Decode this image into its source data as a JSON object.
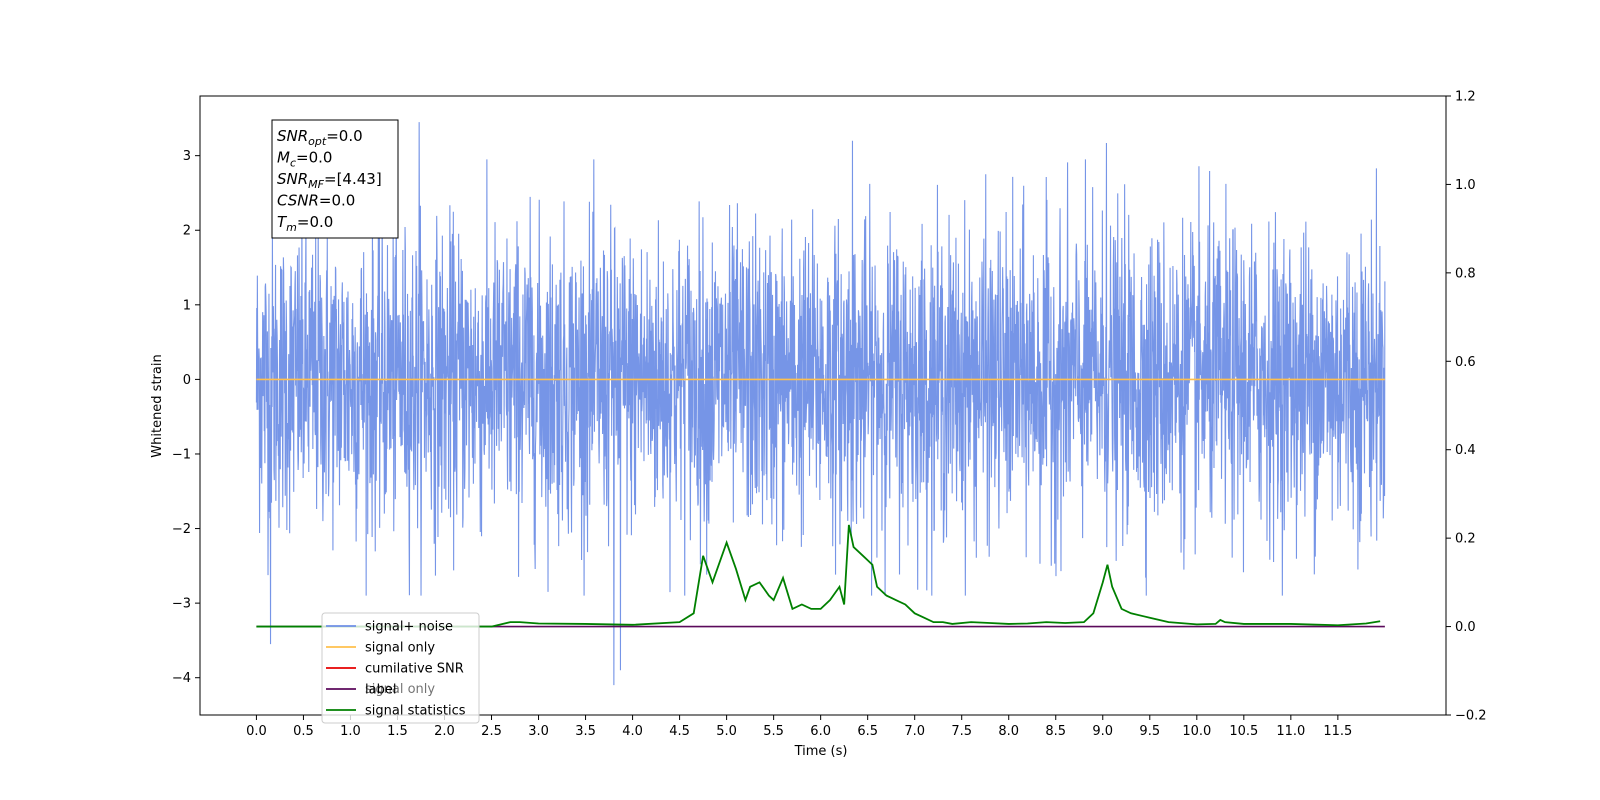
{
  "chart_data": {
    "type": "line",
    "xlabel": "Time (s)",
    "ylabel": "Whitened strain",
    "xlim": [
      -0.6,
      12.65
    ],
    "ylim": [
      -4.5,
      3.8
    ],
    "ylim_right": [
      -0.2,
      1.2
    ],
    "grid": false,
    "legend_position": "lower-left",
    "x_ticks": [
      "0.0",
      "0.5",
      "1.0",
      "1.5",
      "2.0",
      "2.5",
      "3.0",
      "3.5",
      "4.0",
      "4.5",
      "5.0",
      "5.5",
      "6.0",
      "6.5",
      "7.0",
      "7.5",
      "8.0",
      "8.5",
      "9.0",
      "9.5",
      "10.0",
      "10.5",
      "11.0",
      "11.5"
    ],
    "y_ticks": [
      "3",
      "2",
      "1",
      "0",
      "−1",
      "−2",
      "−3",
      "−4"
    ],
    "y_ticks_right": [
      "1.2",
      "1.0",
      "0.8",
      "0.6",
      "0.4",
      "0.2",
      "0.0",
      "−0.2"
    ],
    "colors": {
      "signal_noise": "#6f8fe6",
      "signal_only": "#ffc04d",
      "cumilative_snr": "#e60000",
      "label": "#5b0a5b",
      "signal_statistics": "#008000"
    },
    "series": [
      {
        "name": "signal+ noise",
        "axis": "left",
        "x_range": [
          0.0,
          12.0
        ],
        "envelope_peaks": [
          {
            "x": 0.15,
            "y": -3.55
          },
          {
            "x": 1.73,
            "y": 3.45
          },
          {
            "x": 3.8,
            "y": -4.1
          },
          {
            "x": 3.87,
            "y": -3.9
          },
          {
            "x": 6.34,
            "y": 3.2
          },
          {
            "x": 9.04,
            "y": 3.17
          }
        ]
      },
      {
        "name": "signal only",
        "axis": "left",
        "x": [
          0.0,
          12.0
        ],
        "y": [
          0.0,
          0.0
        ]
      },
      {
        "name": "label",
        "axis": "right",
        "x": [
          0.0,
          12.0
        ],
        "y": [
          0.0,
          0.0
        ]
      },
      {
        "name": "signal statistics",
        "axis": "right",
        "x": [
          0.0,
          0.5,
          1.0,
          1.5,
          2.0,
          2.5,
          2.7,
          2.8,
          3.0,
          3.5,
          4.0,
          4.5,
          4.65,
          4.75,
          4.85,
          5.0,
          5.1,
          5.2,
          5.25,
          5.35,
          5.45,
          5.5,
          5.6,
          5.7,
          5.8,
          5.9,
          6.0,
          6.1,
          6.2,
          6.25,
          6.3,
          6.35,
          6.45,
          6.5,
          6.55,
          6.6,
          6.7,
          6.8,
          6.9,
          7.0,
          7.1,
          7.2,
          7.3,
          7.4,
          7.6,
          7.8,
          8.0,
          8.2,
          8.4,
          8.6,
          8.8,
          8.9,
          9.0,
          9.05,
          9.1,
          9.2,
          9.3,
          9.5,
          9.7,
          10.0,
          10.2,
          10.25,
          10.3,
          10.5,
          11.0,
          11.5,
          11.8,
          11.95
        ],
        "y": [
          0.0,
          0.0,
          0.0,
          0.0,
          0.0,
          0.0,
          0.01,
          0.01,
          0.007,
          0.006,
          0.004,
          0.01,
          0.03,
          0.16,
          0.1,
          0.19,
          0.13,
          0.06,
          0.09,
          0.1,
          0.07,
          0.06,
          0.11,
          0.04,
          0.05,
          0.04,
          0.04,
          0.06,
          0.09,
          0.05,
          0.23,
          0.18,
          0.16,
          0.15,
          0.14,
          0.09,
          0.07,
          0.06,
          0.05,
          0.03,
          0.02,
          0.01,
          0.01,
          0.006,
          0.01,
          0.008,
          0.006,
          0.007,
          0.01,
          0.008,
          0.01,
          0.03,
          0.1,
          0.14,
          0.09,
          0.04,
          0.03,
          0.02,
          0.01,
          0.005,
          0.006,
          0.015,
          0.01,
          0.006,
          0.006,
          0.003,
          0.007,
          0.012
        ]
      },
      {
        "name": "cumilative SNR",
        "axis": "right",
        "x": [],
        "y": []
      }
    ],
    "legend": [
      {
        "label": "signal+ noise",
        "key": "signal_noise"
      },
      {
        "label": "signal only",
        "key": "signal_only"
      },
      {
        "label": "cumilative SNR",
        "key": "cumilative_snr"
      },
      {
        "label": "label",
        "key": "label"
      },
      {
        "label": "signal statistics",
        "key": "signal_statistics"
      }
    ],
    "ghost_legend_text": "signal only",
    "stats_box": [
      {
        "name": "SNR",
        "sub": "opt",
        "value": "=0.0"
      },
      {
        "name": "M",
        "sub": "c",
        "value": "=0.0"
      },
      {
        "name": "SNR",
        "sub": "MF",
        "value": "=[4.43]"
      },
      {
        "name": "CSNR",
        "sub": "",
        "value": "=0.0"
      },
      {
        "name": "T",
        "sub": "m",
        "value": "=0.0"
      }
    ]
  }
}
